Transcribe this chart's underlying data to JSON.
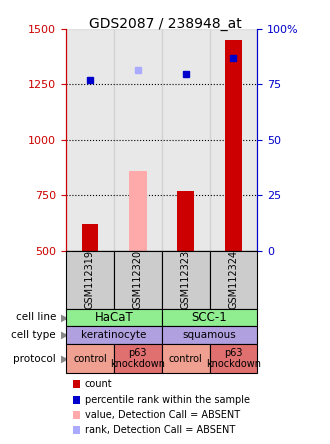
{
  "title": "GDS2087 / 238948_at",
  "samples": [
    "GSM112319",
    "GSM112320",
    "GSM112323",
    "GSM112324"
  ],
  "bar_values_red": [
    620,
    null,
    770,
    1450
  ],
  "bar_values_pink": [
    null,
    860,
    null,
    null
  ],
  "dot_values_blue": [
    1270,
    null,
    1295,
    1370
  ],
  "dot_values_lightblue": [
    null,
    1315,
    null,
    null
  ],
  "ylim": [
    500,
    1500
  ],
  "yticks_left": [
    500,
    750,
    1000,
    1250,
    1500
  ],
  "yticks_right_vals": [
    0,
    25,
    50,
    75,
    100
  ],
  "yticks_right_labels": [
    "0",
    "25",
    "50",
    "75",
    "100%"
  ],
  "dotted_lines": [
    750,
    1000,
    1250
  ],
  "cell_line_color": "#90EE90",
  "cell_type_color": "#b0a0e0",
  "protocol_colors": [
    "#f0a090",
    "#e07070",
    "#f0a090",
    "#e07070"
  ],
  "legend_items": [
    {
      "color": "#cc0000",
      "label": "count"
    },
    {
      "color": "#0000cc",
      "label": "percentile rank within the sample"
    },
    {
      "color": "#ffaaaa",
      "label": "value, Detection Call = ABSENT"
    },
    {
      "color": "#aaaaff",
      "label": "rank, Detection Call = ABSENT"
    }
  ],
  "bar_width": 0.35,
  "sample_bg_color": "#cccccc",
  "left_axis_color": "#cc0000",
  "right_axis_color": "#0000cc"
}
